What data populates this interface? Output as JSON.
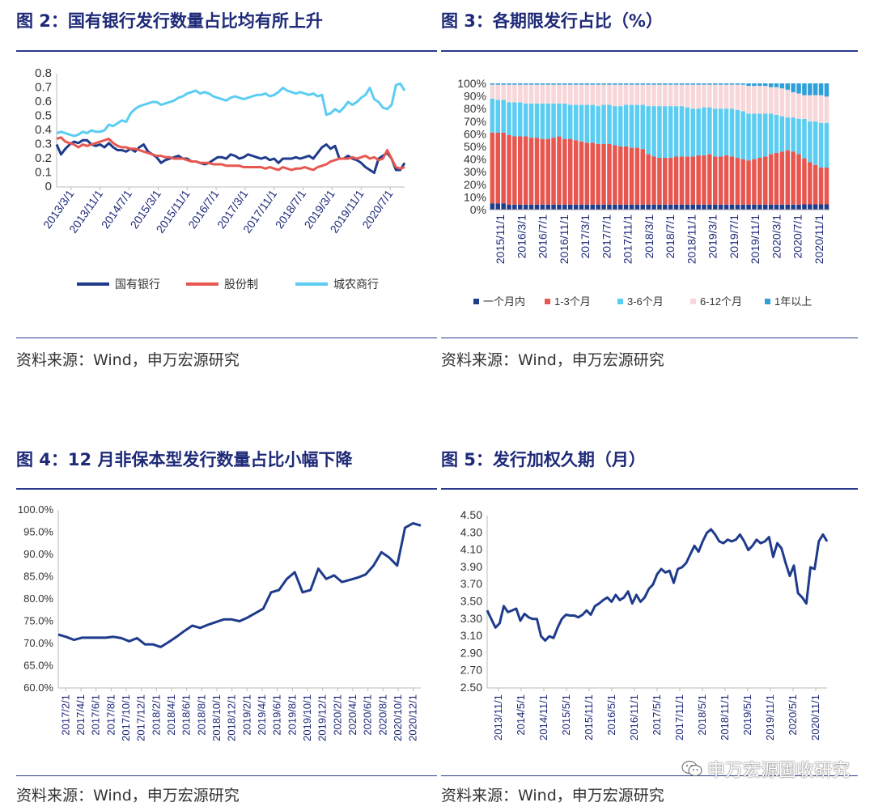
{
  "charts": [
    {
      "id": "fig2",
      "title": "图 2：国有银行发行数量占比均有所上升",
      "source": "资料来源：Wind，申万宏源研究"
    },
    {
      "id": "fig3",
      "title": "图 3：各期限发行占比（%）",
      "source": "资料来源：Wind，申万宏源研究"
    },
    {
      "id": "fig4",
      "title": "图 4：12 月非保本型发行数量占比小幅下降",
      "source": "资料来源：Wind，申万宏源研究"
    },
    {
      "id": "fig5",
      "title": "图 5：发行加权久期（月）",
      "source": "资料来源：Wind，申万宏源研究"
    }
  ],
  "watermark": "申万宏源固收研究",
  "colors": {
    "title": "#1e2a78",
    "navy": "#1f3b8c",
    "red": "#e8574f",
    "light_blue": "#5bcdf2",
    "pink": "#f7d7d9",
    "mid_blue": "#2e9fd9"
  },
  "chart_data": [
    {
      "type": "line",
      "x_ticks": [
        "2013/3/1",
        "2013/11/1",
        "2014/7/1",
        "2015/3/1",
        "2015/11/1",
        "2016/7/1",
        "2017/3/1",
        "2017/11/1",
        "2018/7/1",
        "2019/3/1",
        "2019/11/1",
        "2020/7/1"
      ],
      "ylim": [
        0,
        0.8
      ],
      "y_ticks": [
        "0",
        "0.1",
        "0.2",
        "0.3",
        "0.4",
        "0.5",
        "0.6",
        "0.7",
        "0.8"
      ],
      "series": [
        {
          "name": "国有银行",
          "color": "#1f3b8c",
          "values": [
            0.3,
            0.23,
            0.27,
            0.3,
            0.32,
            0.31,
            0.33,
            0.33,
            0.3,
            0.29,
            0.3,
            0.28,
            0.31,
            0.28,
            0.26,
            0.26,
            0.25,
            0.27,
            0.25,
            0.28,
            0.3,
            0.25,
            0.23,
            0.21,
            0.17,
            0.19,
            0.2,
            0.21,
            0.22,
            0.2,
            0.2,
            0.18,
            0.18,
            0.17,
            0.16,
            0.17,
            0.19,
            0.21,
            0.21,
            0.2,
            0.23,
            0.22,
            0.2,
            0.21,
            0.23,
            0.22,
            0.21,
            0.2,
            0.21,
            0.19,
            0.2,
            0.17,
            0.2,
            0.2,
            0.2,
            0.21,
            0.2,
            0.21,
            0.22,
            0.2,
            0.24,
            0.28,
            0.3,
            0.27,
            0.29,
            0.2,
            0.2,
            0.22,
            0.2,
            0.19,
            0.17,
            0.14,
            0.12,
            0.1,
            0.2,
            0.22,
            0.24,
            0.2,
            0.12,
            0.12,
            0.17
          ]
        },
        {
          "name": "股份制",
          "color": "#e8574f",
          "values": [
            0.34,
            0.35,
            0.32,
            0.31,
            0.3,
            0.28,
            0.3,
            0.29,
            0.3,
            0.31,
            0.32,
            0.33,
            0.34,
            0.31,
            0.29,
            0.28,
            0.28,
            0.27,
            0.27,
            0.26,
            0.25,
            0.24,
            0.23,
            0.22,
            0.22,
            0.21,
            0.21,
            0.2,
            0.2,
            0.2,
            0.19,
            0.18,
            0.18,
            0.17,
            0.17,
            0.17,
            0.16,
            0.16,
            0.16,
            0.15,
            0.15,
            0.15,
            0.15,
            0.14,
            0.14,
            0.14,
            0.14,
            0.14,
            0.13,
            0.14,
            0.13,
            0.12,
            0.14,
            0.13,
            0.12,
            0.13,
            0.13,
            0.14,
            0.13,
            0.12,
            0.14,
            0.15,
            0.16,
            0.18,
            0.19,
            0.2,
            0.2,
            0.2,
            0.21,
            0.2,
            0.21,
            0.22,
            0.2,
            0.21,
            0.19,
            0.2,
            0.26,
            0.2,
            0.14,
            0.13,
            0.14
          ]
        },
        {
          "name": "城农商行",
          "color": "#5bcdf2",
          "values": [
            0.38,
            0.39,
            0.38,
            0.37,
            0.36,
            0.37,
            0.39,
            0.38,
            0.4,
            0.39,
            0.39,
            0.4,
            0.44,
            0.43,
            0.45,
            0.47,
            0.46,
            0.52,
            0.55,
            0.57,
            0.58,
            0.59,
            0.6,
            0.6,
            0.58,
            0.59,
            0.6,
            0.61,
            0.63,
            0.64,
            0.66,
            0.67,
            0.68,
            0.66,
            0.67,
            0.66,
            0.64,
            0.63,
            0.62,
            0.61,
            0.63,
            0.64,
            0.63,
            0.62,
            0.63,
            0.64,
            0.65,
            0.65,
            0.66,
            0.64,
            0.65,
            0.67,
            0.7,
            0.68,
            0.67,
            0.66,
            0.67,
            0.66,
            0.65,
            0.66,
            0.64,
            0.65,
            0.51,
            0.52,
            0.55,
            0.53,
            0.56,
            0.6,
            0.58,
            0.6,
            0.63,
            0.65,
            0.7,
            0.62,
            0.6,
            0.56,
            0.55,
            0.58,
            0.72,
            0.73,
            0.68
          ]
        }
      ],
      "legend": "bottom"
    },
    {
      "type": "bar",
      "stacked": true,
      "x_ticks": [
        "2015/11/1",
        "2016/3/1",
        "2016/7/1",
        "2016/11/1",
        "2017/3/1",
        "2017/7/1",
        "2017/11/1",
        "2018/3/1",
        "2018/7/1",
        "2018/11/1",
        "2019/3/1",
        "2019/7/1",
        "2019/11/1",
        "2020/3/1",
        "2020/7/1",
        "2020/11/1"
      ],
      "y_ticks": [
        "0%",
        "10%",
        "20%",
        "30%",
        "40%",
        "50%",
        "60%",
        "70%",
        "80%",
        "90%",
        "100%"
      ],
      "ylim": [
        0,
        100
      ],
      "series": [
        {
          "name": "一个月内",
          "color": "#1f3b8c",
          "values": [
            5,
            5,
            5,
            4,
            4,
            4,
            4,
            4,
            4,
            4,
            4,
            4,
            4,
            4,
            4,
            4,
            4,
            4,
            4,
            4,
            4,
            4,
            4,
            4,
            4,
            4,
            4,
            4,
            4,
            4,
            4,
            4,
            4,
            4,
            4,
            4,
            4,
            4,
            4,
            4,
            4,
            4,
            4,
            4,
            4,
            4,
            4,
            4,
            4,
            4,
            4,
            4,
            4,
            4,
            4,
            4,
            4,
            4,
            4,
            4,
            4
          ]
        },
        {
          "name": "1-3个月",
          "color": "#e8574f",
          "values": [
            56,
            56,
            56,
            55,
            54,
            54,
            54,
            53,
            53,
            52,
            52,
            53,
            54,
            52,
            52,
            51,
            50,
            49,
            49,
            48,
            48,
            48,
            47,
            46,
            46,
            45,
            45,
            44,
            40,
            38,
            37,
            37,
            37,
            38,
            38,
            38,
            38,
            39,
            39,
            40,
            38,
            38,
            39,
            38,
            37,
            36,
            35,
            36,
            37,
            38,
            40,
            41,
            42,
            43,
            42,
            40,
            35,
            32,
            30,
            28,
            28
          ]
        },
        {
          "name": "3-6个月",
          "color": "#5bcdf2",
          "values": [
            27,
            26,
            26,
            26,
            27,
            27,
            26,
            27,
            27,
            28,
            28,
            27,
            26,
            28,
            27,
            28,
            29,
            30,
            30,
            30,
            31,
            31,
            31,
            32,
            33,
            34,
            34,
            35,
            38,
            40,
            41,
            41,
            41,
            40,
            40,
            39,
            38,
            37,
            38,
            37,
            38,
            38,
            37,
            38,
            38,
            38,
            37,
            36,
            35,
            34,
            32,
            30,
            28,
            26,
            27,
            28,
            30,
            31,
            33,
            34,
            34
          ]
        },
        {
          "name": "6-12个月",
          "color": "#f7d7d9",
          "values": [
            11,
            12,
            12,
            14,
            14,
            14,
            15,
            15,
            15,
            15,
            15,
            15,
            15,
            15,
            16,
            16,
            16,
            16,
            16,
            17,
            16,
            16,
            17,
            17,
            16,
            16,
            16,
            16,
            17,
            17,
            17,
            17,
            17,
            17,
            17,
            18,
            19,
            19,
            18,
            18,
            19,
            19,
            19,
            19,
            20,
            21,
            22,
            22,
            22,
            22,
            21,
            22,
            22,
            22,
            20,
            20,
            18,
            20,
            20,
            21,
            20
          ]
        },
        {
          "name": "1年以上",
          "color": "#2e9fd9",
          "values": [
            1,
            1,
            1,
            1,
            1,
            1,
            1,
            1,
            1,
            1,
            1,
            1,
            1,
            1,
            1,
            1,
            1,
            1,
            1,
            1,
            1,
            1,
            1,
            1,
            1,
            1,
            1,
            1,
            1,
            1,
            1,
            1,
            1,
            1,
            1,
            1,
            1,
            1,
            1,
            1,
            1,
            1,
            1,
            1,
            1,
            1,
            2,
            2,
            2,
            2,
            3,
            3,
            4,
            5,
            7,
            8,
            9,
            9,
            9,
            9,
            10
          ]
        }
      ],
      "legend": "bottom"
    },
    {
      "type": "line",
      "x_ticks": [
        "2017/2/1",
        "2017/4/1",
        "2017/6/1",
        "2017/8/1",
        "2017/10/1",
        "2017/12/1",
        "2018/2/1",
        "2018/4/1",
        "2018/6/1",
        "2018/8/1",
        "2018/10/1",
        "2018/12/1",
        "2019/2/1",
        "2019/4/1",
        "2019/6/1",
        "2019/8/1",
        "2019/10/1",
        "2019/12/1",
        "2020/2/1",
        "2020/4/1",
        "2020/6/1",
        "2020/8/1",
        "2020/10/1",
        "2020/12/1"
      ],
      "y_ticks": [
        "60.0%",
        "65.0%",
        "70.0%",
        "75.0%",
        "80.0%",
        "85.0%",
        "90.0%",
        "95.0%",
        "100.0%"
      ],
      "ylim": [
        60,
        100
      ],
      "series": [
        {
          "name": "",
          "color": "#1f3b8c",
          "values": [
            72.0,
            71.5,
            70.8,
            71.3,
            71.3,
            71.3,
            71.3,
            71.5,
            71.2,
            70.5,
            71.2,
            69.8,
            69.8,
            69.2,
            70.3,
            71.5,
            72.8,
            74.0,
            73.5,
            74.2,
            74.8,
            75.4,
            75.4,
            75.0,
            75.8,
            76.8,
            77.8,
            81.5,
            82.0,
            84.5,
            86.0,
            81.5,
            82.0,
            86.8,
            84.5,
            85.3,
            83.8,
            84.3,
            84.8,
            85.5,
            87.5,
            90.5,
            89.3,
            87.5,
            96.0,
            97.0,
            96.5
          ]
        }
      ]
    },
    {
      "type": "line",
      "x_ticks": [
        "2013/11/1",
        "2014/5/1",
        "2014/11/1",
        "2015/5/1",
        "2015/11/1",
        "2016/5/1",
        "2016/11/1",
        "2017/5/1",
        "2017/11/1",
        "2018/5/1",
        "2018/11/1",
        "2019/5/1",
        "2019/11/1",
        "2020/5/1",
        "2020/11/1"
      ],
      "y_ticks": [
        "2.50",
        "2.70",
        "2.90",
        "3.10",
        "3.30",
        "3.50",
        "3.70",
        "3.90",
        "4.10",
        "4.30",
        "4.50"
      ],
      "ylim": [
        2.5,
        4.5
      ],
      "series": [
        {
          "name": "",
          "color": "#1f3b8c",
          "values": [
            3.4,
            3.3,
            3.2,
            3.25,
            3.45,
            3.38,
            3.4,
            3.42,
            3.28,
            3.36,
            3.32,
            3.3,
            3.3,
            3.1,
            3.05,
            3.1,
            3.08,
            3.2,
            3.3,
            3.35,
            3.34,
            3.34,
            3.32,
            3.35,
            3.4,
            3.35,
            3.45,
            3.48,
            3.52,
            3.55,
            3.5,
            3.58,
            3.52,
            3.55,
            3.62,
            3.48,
            3.58,
            3.5,
            3.55,
            3.65,
            3.7,
            3.82,
            3.88,
            3.84,
            3.86,
            3.72,
            3.88,
            3.9,
            3.95,
            4.05,
            4.15,
            4.08,
            4.2,
            4.3,
            4.34,
            4.28,
            4.2,
            4.18,
            4.22,
            4.2,
            4.22,
            4.28,
            4.2,
            4.1,
            4.15,
            4.22,
            4.18,
            4.2,
            4.25,
            4.02,
            4.18,
            4.12,
            3.95,
            3.8,
            3.92,
            3.6,
            3.55,
            3.48,
            3.9,
            3.88,
            4.2,
            4.28,
            4.2
          ]
        }
      ]
    }
  ]
}
